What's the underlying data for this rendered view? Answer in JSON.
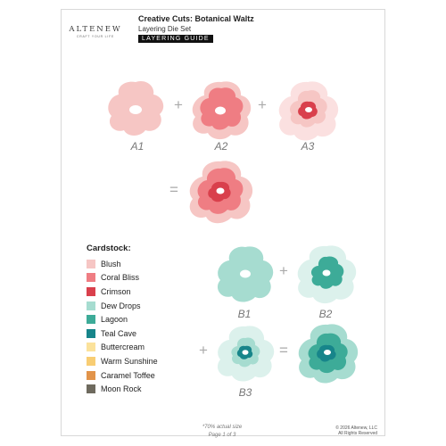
{
  "header": {
    "brand": "ALTENEW",
    "tagline": "CRAFT YOUR LIFE",
    "title": "Creative Cuts: Botanical Waltz",
    "subtitle": "Layering Die Set",
    "badge": "LAYERING GUIDE"
  },
  "steps": {
    "a1": "A1",
    "a2": "A2",
    "a3": "A3",
    "b1": "B1",
    "b2": "B2",
    "b3": "B3"
  },
  "operators": {
    "plus": "+",
    "equals": "="
  },
  "colors": {
    "blush": "#f6c6c4",
    "coral_bliss": "#ef7d83",
    "crimson": "#d9404c",
    "dew_drops": "#a6dcd0",
    "lagoon": "#3dab98",
    "teal_cave": "#17858a",
    "buttercream": "#fbe29b",
    "warm_sunshine": "#f8cd73",
    "caramel_toffee": "#e2944a",
    "moon_rock": "#6e6a5e"
  },
  "legend": {
    "title": "Cardstock:",
    "items": [
      {
        "label": "Blush",
        "color": "#f6c6c4"
      },
      {
        "label": "Coral Bliss",
        "color": "#ef7d83"
      },
      {
        "label": "Crimson",
        "color": "#d9404c"
      },
      {
        "label": "Dew Drops",
        "color": "#a6dcd0"
      },
      {
        "label": "Lagoon",
        "color": "#3dab98"
      },
      {
        "label": "Teal Cave",
        "color": "#17858a"
      },
      {
        "label": "Buttercream",
        "color": "#fbe29b"
      },
      {
        "label": "Warm Sunshine",
        "color": "#f8cd73"
      },
      {
        "label": "Caramel Toffee",
        "color": "#e2944a"
      },
      {
        "label": "Moon Rock",
        "color": "#6e6a5e"
      }
    ]
  },
  "footer": {
    "scale_note": "*70% actual size",
    "page": "Page 1 of 3",
    "copyright_line1": "© 2026 Altenew, LLC",
    "copyright_line2": "All Rights Reserved"
  }
}
